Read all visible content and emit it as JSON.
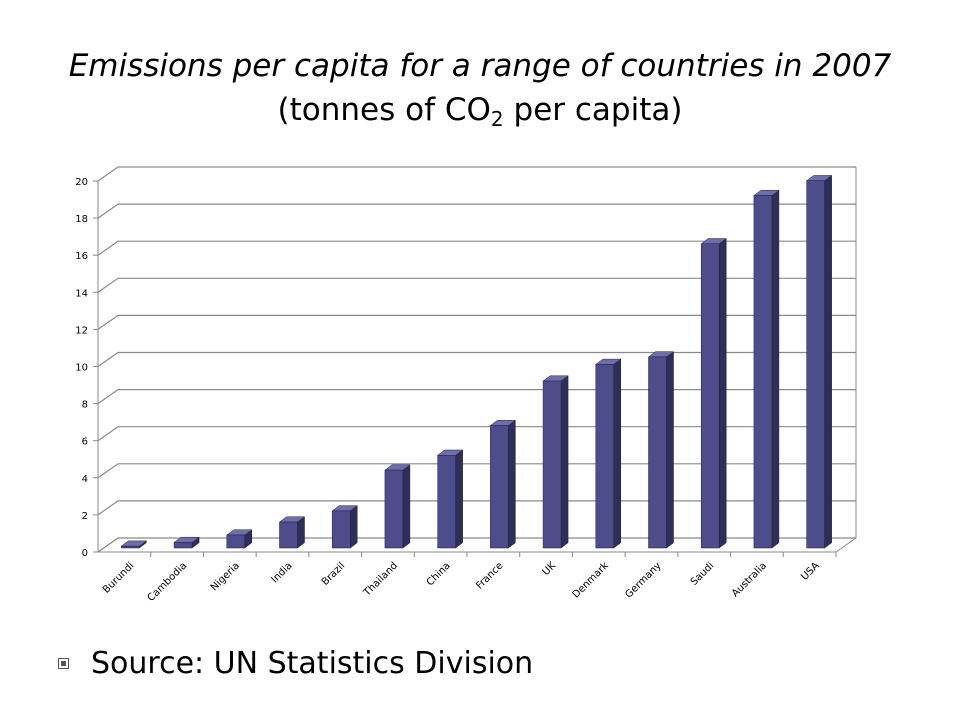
{
  "title": {
    "line1": "Emissions per capita for a range of countries in 2007",
    "line2_prefix": "(tonnes of CO",
    "line2_sub": "2",
    "line2_suffix": " per capita)"
  },
  "source": "Source: UN Statistics Division",
  "chart_data": {
    "type": "bar",
    "title": "Emissions per capita for a range of countries in 2007 (tonnes of CO2 per capita)",
    "xlabel": "",
    "ylabel": "",
    "ylim": [
      0,
      20
    ],
    "yticks": [
      "0",
      "2",
      "4",
      "6",
      "8",
      "10",
      "12",
      "14",
      "16",
      "18",
      "20"
    ],
    "grid": true,
    "legend": "none",
    "categories": [
      "Burundi",
      "Cambodia",
      "Nigeria",
      "India",
      "Brazil",
      "Thailand",
      "China",
      "France",
      "UK",
      "Denmark",
      "Germany",
      "Saudi",
      "Australia",
      "USA"
    ],
    "values": [
      0.1,
      0.3,
      0.7,
      1.4,
      2.0,
      4.2,
      5.0,
      6.6,
      9.0,
      9.9,
      10.3,
      16.4,
      19.0,
      19.8
    ],
    "colors": {
      "front": "#4d4d8c",
      "side": "#2e2e5a",
      "top": "#6e6eaa"
    }
  }
}
